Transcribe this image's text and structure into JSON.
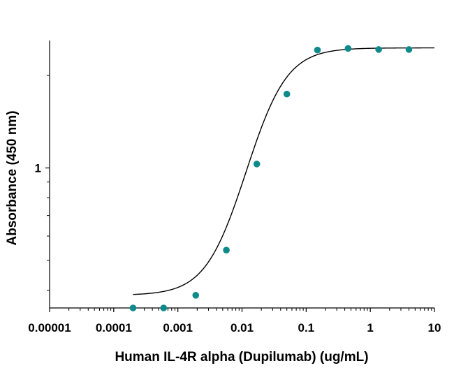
{
  "chart_data": {
    "type": "scatter",
    "title": "",
    "xlabel": "Human IL-4R alpha (Dupilumab) (ug/mL)",
    "ylabel": "Absorbance (450 nm)",
    "x_scale": "log",
    "y_scale": "log",
    "xlim": [
      1e-05,
      10
    ],
    "ylim": [
      0.35,
      2.6
    ],
    "x_tick_labels": [
      "0.00001",
      "0.0001",
      "0.001",
      "0.01",
      "0.1",
      "1",
      "10"
    ],
    "y_tick_labels": [
      "1"
    ],
    "grid": false,
    "legend": "none",
    "marker_color": "#0f8a8a",
    "curve_color": "#000000",
    "series": [
      {
        "x": [
          0.0002,
          0.0006,
          0.0019,
          0.0057,
          0.017,
          0.05,
          0.15,
          0.45,
          1.35,
          4.0
        ],
        "y": [
          0.35,
          0.35,
          0.385,
          0.54,
          1.03,
          1.74,
          2.42,
          2.45,
          2.43,
          2.43
        ]
      }
    ],
    "fit_curve": {
      "model": "4PL",
      "bottom": 0.385,
      "top": 2.46,
      "ec50": 0.022,
      "hill": 1.45,
      "x_range": [
        0.0002,
        10
      ]
    }
  }
}
